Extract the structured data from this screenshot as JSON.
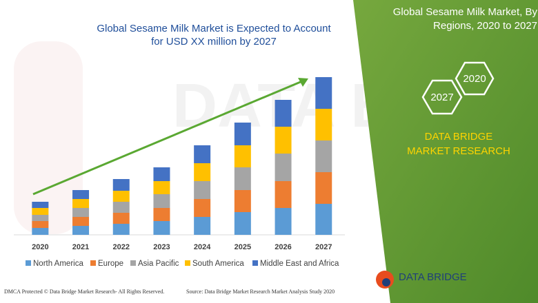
{
  "chart_data": {
    "type": "stacked-bar",
    "title": "Global Sesame Milk Market is Expected to Account for USD XX million by 2027",
    "categories": [
      "2020",
      "2021",
      "2022",
      "2023",
      "2024",
      "2025",
      "2026",
      "2027"
    ],
    "series": [
      {
        "name": "North America",
        "color": "#5b9bd5",
        "values": [
          10,
          13,
          16,
          20,
          26,
          33,
          39,
          45
        ]
      },
      {
        "name": "Europe",
        "color": "#ed7d31",
        "values": [
          10,
          13,
          16,
          19,
          26,
          32,
          39,
          46
        ]
      },
      {
        "name": "Asia Pacific",
        "color": "#a5a5a5",
        "values": [
          9,
          13,
          16,
          20,
          26,
          33,
          40,
          46
        ]
      },
      {
        "name": "South America",
        "color": "#ffc000",
        "values": [
          10,
          13,
          16,
          19,
          26,
          32,
          39,
          46
        ]
      },
      {
        "name": "Middle East and Africa",
        "color": "#4472c4",
        "values": [
          9,
          13,
          17,
          20,
          26,
          33,
          39,
          46
        ]
      }
    ],
    "ylim": [
      0,
      240
    ]
  },
  "panel": {
    "title": "Global Sesame Milk Market, By Regions, 2020 to 2027",
    "hex_top": "2020",
    "hex_bottom": "2027",
    "brand": "DATA BRIDGE MARKET RESEARCH",
    "logo": "DATA BRIDGE"
  },
  "footer": {
    "left": "DMCA Protected © Data Bridge Market Research- All Rights Reserved.",
    "right": "Source: Data Bridge Market Research Market Analysis Study 2020"
  }
}
